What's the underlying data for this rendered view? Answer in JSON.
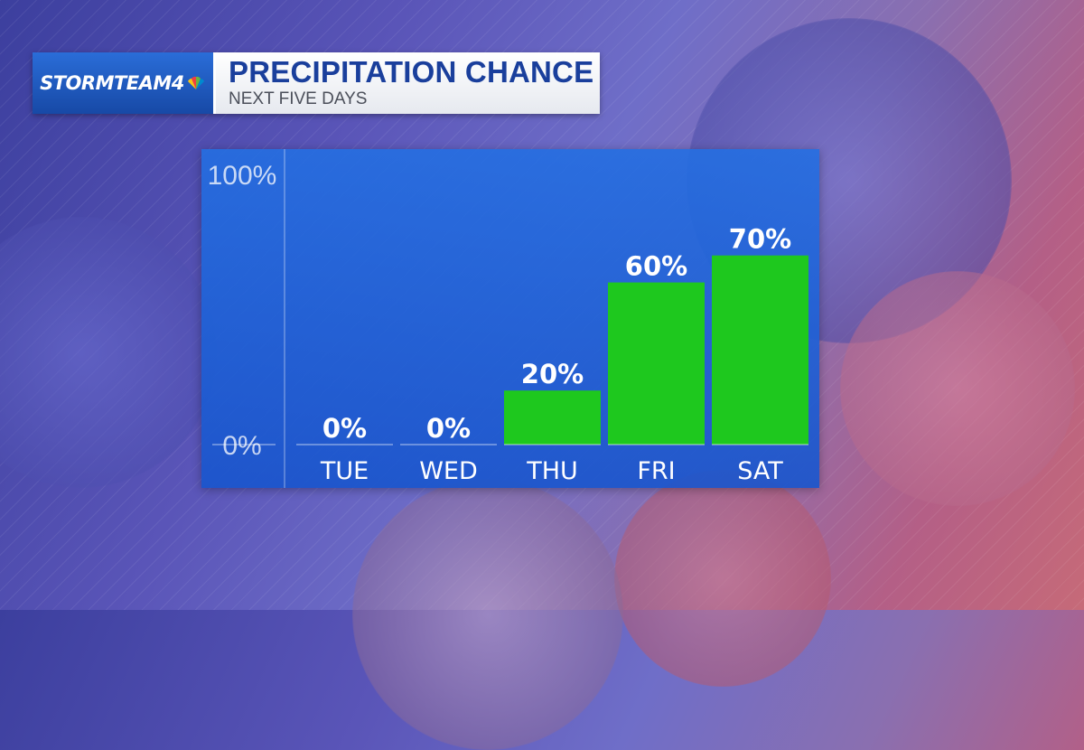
{
  "header": {
    "logo": "STORMTEAM4",
    "title": "PRECIPITATION CHANCE",
    "subtitle": "NEXT FIVE DAYS"
  },
  "colors": {
    "bar": "#1ec81e",
    "panel": "#1f62d6",
    "title": "#1a3f9c"
  },
  "chart_data": {
    "type": "bar",
    "title": "PRECIPITATION CHANCE",
    "subtitle": "NEXT FIVE DAYS",
    "categories": [
      "TUE",
      "WED",
      "THU",
      "FRI",
      "SAT"
    ],
    "values": [
      0,
      0,
      20,
      60,
      70
    ],
    "value_labels": [
      "0%",
      "0%",
      "20%",
      "60%",
      "70%"
    ],
    "ylim": [
      0,
      100
    ],
    "y_tick_labels": [
      "100%",
      "0%"
    ],
    "unit": "%",
    "grid": false,
    "legend": "none"
  }
}
